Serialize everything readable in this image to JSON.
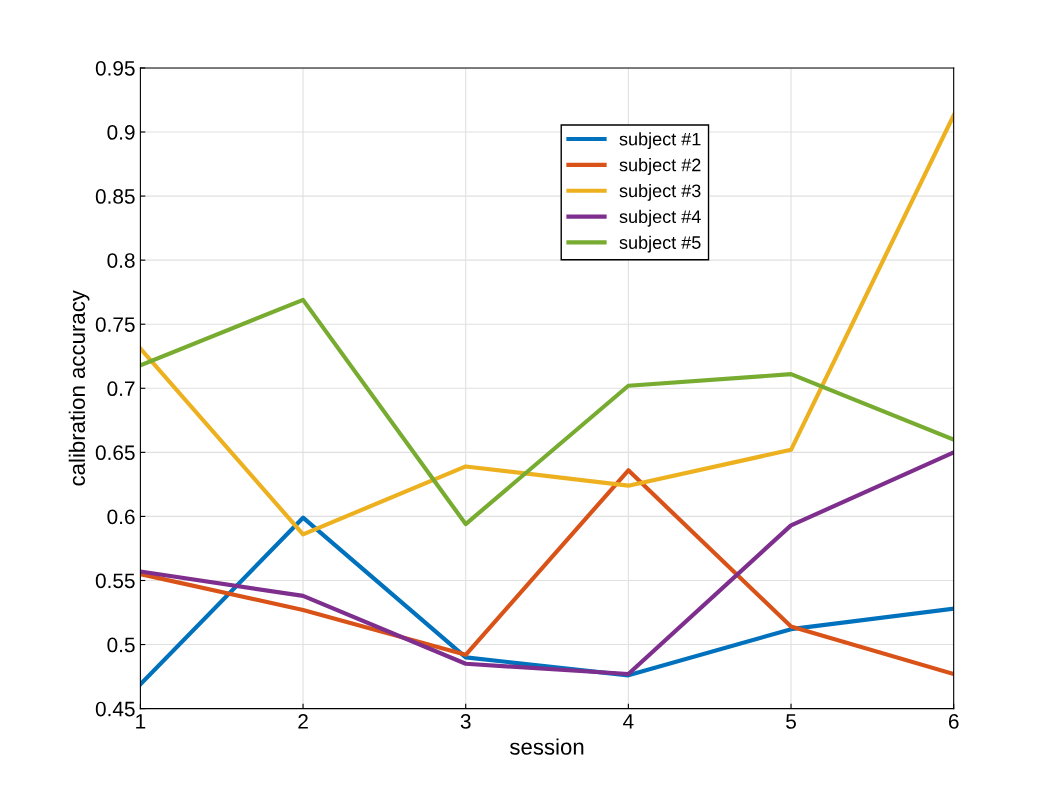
{
  "chart_data": {
    "type": "line",
    "xlabel": "session",
    "ylabel": "calibration accuracy",
    "x": [
      1,
      2,
      3,
      4,
      5,
      6
    ],
    "series": [
      {
        "name": "subject #1",
        "color": "#0072bd",
        "values": [
          0.469,
          0.599,
          0.49,
          0.476,
          0.512,
          0.528
        ]
      },
      {
        "name": "subject #2",
        "color": "#d95319",
        "values": [
          0.555,
          0.527,
          0.492,
          0.636,
          0.514,
          0.477
        ]
      },
      {
        "name": "subject #3",
        "color": "#edb120",
        "values": [
          0.731,
          0.586,
          0.639,
          0.624,
          0.652,
          0.913
        ]
      },
      {
        "name": "subject #4",
        "color": "#7e2f8e",
        "values": [
          0.557,
          0.538,
          0.485,
          0.477,
          0.593,
          0.65
        ]
      },
      {
        "name": "subject #5",
        "color": "#77ac30",
        "values": [
          0.718,
          0.769,
          0.594,
          0.702,
          0.711,
          0.66
        ]
      }
    ],
    "xlim": [
      1,
      6
    ],
    "xticks": [
      1,
      2,
      3,
      4,
      5,
      6
    ],
    "ylim": [
      0.45,
      0.95
    ],
    "yticks": [
      0.45,
      0.5,
      0.55,
      0.6,
      0.65,
      0.7,
      0.75,
      0.8,
      0.85,
      0.9,
      0.95
    ],
    "grid": true,
    "legend": "top"
  }
}
